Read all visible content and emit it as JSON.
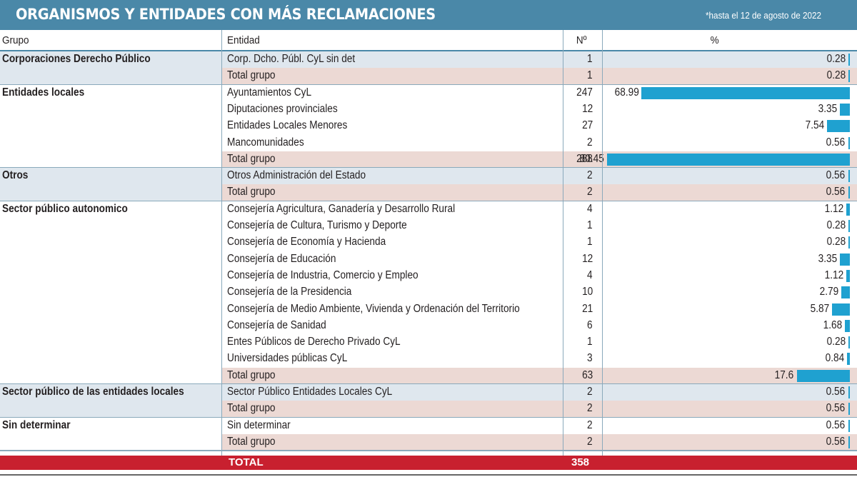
{
  "title": "ORGANISMOS Y ENTIDADES CON MÁS RECLAMACIONES",
  "note": "*hasta el 12 de agosto de 2022",
  "columns": {
    "grupo": "Grupo",
    "entidad": "Entidad",
    "n": "Nº",
    "pct": "%"
  },
  "colors": {
    "header": "#4a88a8",
    "bar": "#1fa1d0",
    "total_row": "#c8202f",
    "group_bg": "#dfe7ee",
    "subtotal_bg": "#ecd9d4"
  },
  "rows": [
    {
      "grupo": "Corporaciones Derecho Público",
      "entidad": "Corp. Dcho. Públ. CyL sin det",
      "n": "1",
      "pct": "0.28",
      "type": "item"
    },
    {
      "grupo": "",
      "entidad": "Total grupo",
      "n": "1",
      "pct": "0.28",
      "type": "subtotal"
    },
    {
      "grupo": "Entidades locales",
      "entidad": "Ayuntamientos CyL",
      "n": "247",
      "pct": "68.99",
      "type": "item"
    },
    {
      "grupo": "",
      "entidad": "Diputaciones provinciales",
      "n": "12",
      "pct": "3.35",
      "type": "item"
    },
    {
      "grupo": "",
      "entidad": "Entidades Locales Menores",
      "n": "27",
      "pct": "7.54",
      "type": "item"
    },
    {
      "grupo": "",
      "entidad": "Mancomunidades",
      "n": "2",
      "pct": "0.56",
      "type": "item"
    },
    {
      "grupo": "",
      "entidad": "Total grupo",
      "n": "288",
      "pct": "80.45",
      "type": "subtotal"
    },
    {
      "grupo": "Otros",
      "entidad": "Otros Administración del Estado",
      "n": "2",
      "pct": "0.56",
      "type": "item"
    },
    {
      "grupo": "",
      "entidad": "Total grupo",
      "n": "2",
      "pct": "0.56",
      "type": "subtotal"
    },
    {
      "grupo": "Sector público autonomico",
      "entidad": "Consejería Agricultura, Ganadería y Desarrollo Rural",
      "n": "4",
      "pct": "1.12",
      "type": "item"
    },
    {
      "grupo": "",
      "entidad": "Consejería de Cultura, Turismo y Deporte",
      "n": "1",
      "pct": "0.28",
      "type": "item"
    },
    {
      "grupo": "",
      "entidad": "Consejería de Economía y Hacienda",
      "n": "1",
      "pct": "0.28",
      "type": "item"
    },
    {
      "grupo": "",
      "entidad": "Consejería de Educación",
      "n": "12",
      "pct": "3.35",
      "type": "item"
    },
    {
      "grupo": "",
      "entidad": "Consejería de Industria, Comercio y Empleo",
      "n": "4",
      "pct": "1.12",
      "type": "item"
    },
    {
      "grupo": "",
      "entidad": "Consejería de la Presidencia",
      "n": "10",
      "pct": "2.79",
      "type": "item"
    },
    {
      "grupo": "",
      "entidad": "Consejería de Medio Ambiente, Vivienda y Ordenación del Territorio",
      "n": "21",
      "pct": "5.87",
      "type": "item"
    },
    {
      "grupo": "",
      "entidad": "Consejería de Sanidad",
      "n": "6",
      "pct": "1.68",
      "type": "item"
    },
    {
      "grupo": "",
      "entidad": "Entes Públicos de Derecho Privado CyL",
      "n": "1",
      "pct": "0.28",
      "type": "item"
    },
    {
      "grupo": "",
      "entidad": "Universidades públicas CyL",
      "n": "3",
      "pct": "0.84",
      "type": "item"
    },
    {
      "grupo": "",
      "entidad": "Total grupo",
      "n": "63",
      "pct": "17.6",
      "type": "subtotal"
    },
    {
      "grupo": "Sector público de las entidades locales",
      "entidad": "Sector Público Entidades Locales CyL",
      "n": "2",
      "pct": "0.56",
      "type": "item"
    },
    {
      "grupo": "",
      "entidad": "Total grupo",
      "n": "2",
      "pct": "0.56",
      "type": "subtotal"
    },
    {
      "grupo": "Sin determinar",
      "entidad": "Sin determinar",
      "n": "2",
      "pct": "0.56",
      "type": "item"
    },
    {
      "grupo": "",
      "entidad": "Total grupo",
      "n": "2",
      "pct": "0.56",
      "type": "subtotal"
    }
  ],
  "total": {
    "label": "TOTAL",
    "n": "358"
  }
}
